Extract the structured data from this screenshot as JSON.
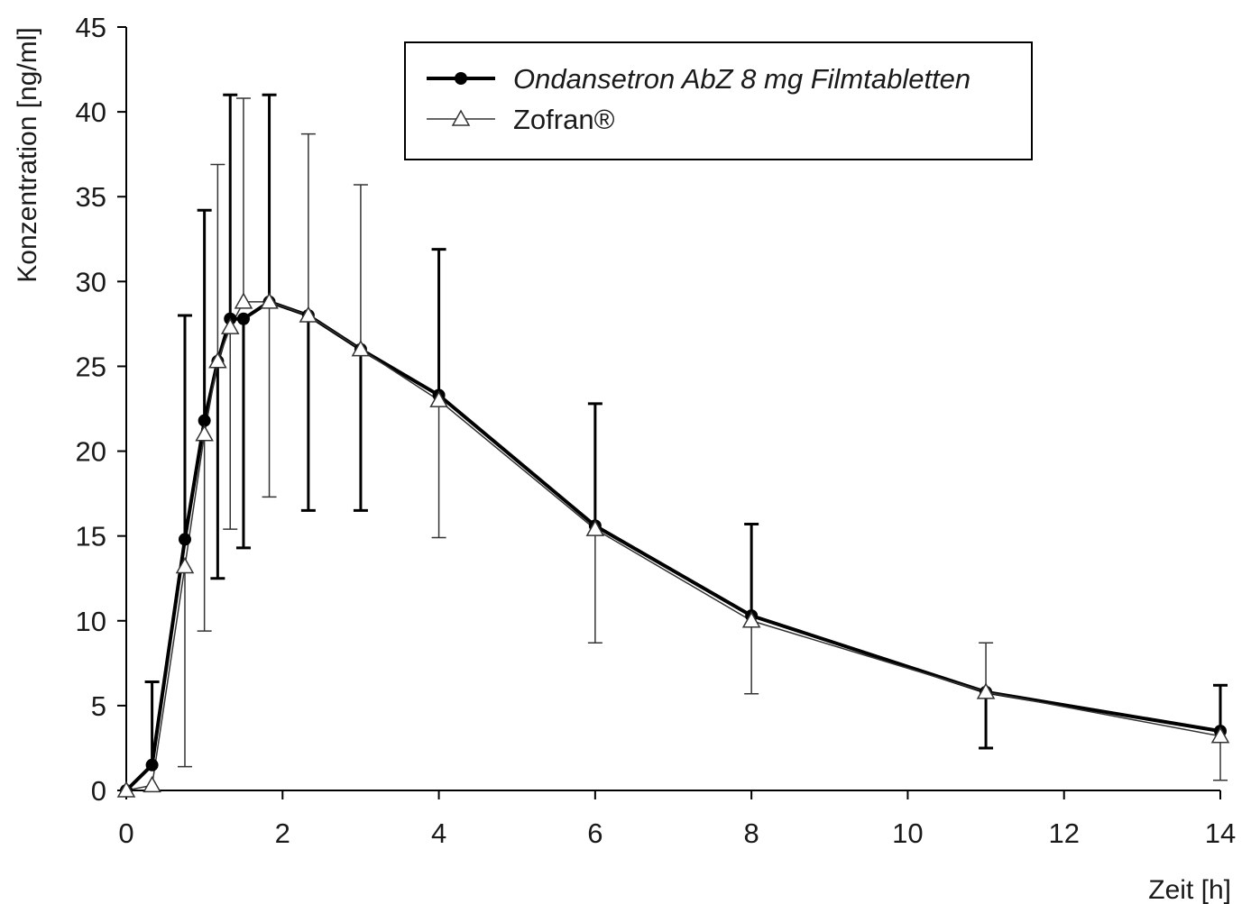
{
  "chart_data": {
    "type": "line",
    "title": "",
    "xlabel": "Zeit [h]",
    "ylabel": "Konzentration [ng/ml]",
    "xlim": [
      0,
      14
    ],
    "ylim": [
      0,
      45
    ],
    "xticks": [
      0,
      2,
      4,
      6,
      8,
      10,
      12,
      14
    ],
    "yticks": [
      0,
      5,
      10,
      15,
      20,
      25,
      30,
      35,
      40,
      45
    ],
    "grid": false,
    "legend": "top-right",
    "series": [
      {
        "name": "Ondansetron AbZ 8 mg Filmtabletten",
        "name_style": "italic",
        "marker": "filled-circle",
        "color": "#000000",
        "x": [
          0,
          0.33,
          0.75,
          1.0,
          1.17,
          1.33,
          1.5,
          1.83,
          2.33,
          3.0,
          4.0,
          6.0,
          8.0,
          11.0,
          14.0
        ],
        "y": [
          0,
          1.5,
          14.8,
          21.8,
          25.3,
          27.8,
          27.8,
          28.8,
          28.0,
          26.0,
          23.3,
          15.6,
          10.3,
          5.8,
          3.5
        ],
        "err_upper": [
          null,
          6.4,
          28.0,
          34.2,
          null,
          41.0,
          null,
          41.0,
          null,
          null,
          31.9,
          22.8,
          15.7,
          null,
          6.2
        ],
        "err_lower": [
          null,
          null,
          null,
          null,
          12.5,
          null,
          14.3,
          null,
          16.5,
          16.5,
          null,
          null,
          null,
          2.5,
          null
        ]
      },
      {
        "name": "Zofran®",
        "name_style": "normal",
        "marker": "open-triangle",
        "color": "#333333",
        "x": [
          0,
          0.33,
          0.75,
          1.0,
          1.17,
          1.33,
          1.5,
          1.83,
          2.33,
          3.0,
          4.0,
          6.0,
          8.0,
          11.0,
          14.0
        ],
        "y": [
          0,
          0.3,
          13.2,
          21.0,
          25.3,
          27.3,
          28.8,
          28.8,
          28.0,
          26.0,
          23.0,
          15.4,
          10.0,
          5.8,
          3.2
        ],
        "err_upper": [
          null,
          null,
          null,
          null,
          36.9,
          null,
          40.8,
          null,
          38.7,
          35.7,
          null,
          null,
          null,
          8.7,
          null
        ],
        "err_lower": [
          null,
          null,
          1.4,
          9.4,
          null,
          15.4,
          null,
          17.3,
          null,
          null,
          14.9,
          8.7,
          5.7,
          null,
          0.6
        ]
      }
    ]
  }
}
